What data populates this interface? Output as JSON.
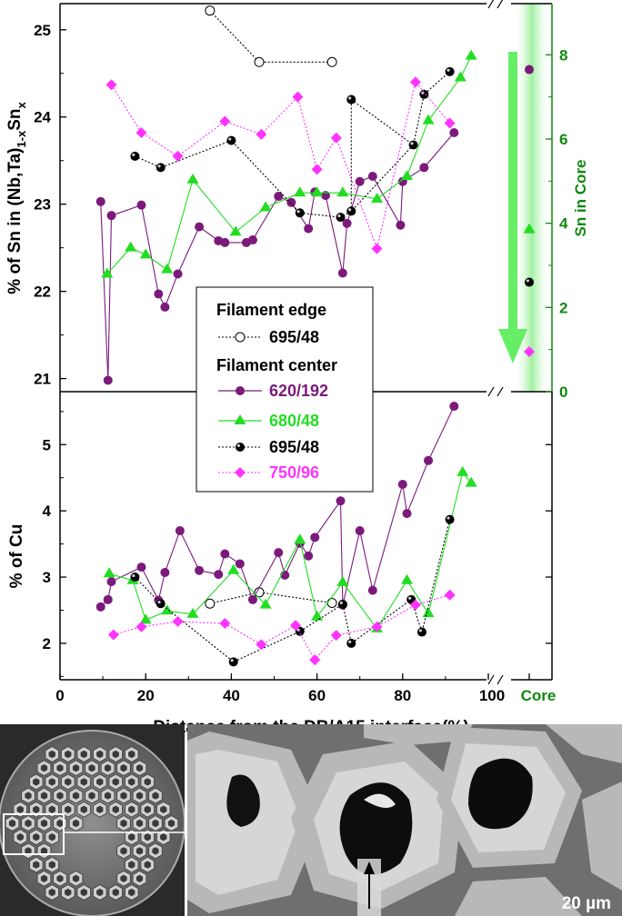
{
  "colors": {
    "purple": "#7b1a7b",
    "green": "#22dd22",
    "black": "#000000",
    "magenta": "#ff33ff",
    "dark_green": "#118811",
    "core_band": "#b6f3b6"
  },
  "chart_data": [
    {
      "type": "line",
      "panel": "top",
      "ylabel_parts": [
        "% of Sn in (Nb,Ta)",
        "1-x",
        "Sn",
        "x"
      ],
      "y2label": "Sn in Core",
      "ylim": [
        20.85,
        25.3
      ],
      "y2lim": [
        0,
        9
      ],
      "yticks": [
        21,
        22,
        23,
        24,
        25
      ],
      "y2ticks": [
        0,
        2,
        4,
        6,
        8
      ],
      "core_label": "Core",
      "legend": {
        "heading_edge": "Filament edge",
        "heading_center": "Filament center"
      },
      "series": [
        {
          "name": "695/48",
          "group": "edge",
          "color": "#000000",
          "marker": "open-circle",
          "dashed": true,
          "x": [
            35,
            46.5,
            63.5
          ],
          "y": [
            25.22,
            24.63,
            24.63
          ]
        },
        {
          "name": "620/192",
          "group": "center",
          "color": "#7b1a7b",
          "marker": "circle",
          "dashed": false,
          "x": [
            9.5,
            11.2,
            12,
            19,
            23,
            24.5,
            27.5,
            32.5,
            37,
            38.5,
            43.5,
            45,
            51,
            54,
            58,
            59.5,
            62,
            66,
            67,
            70,
            73,
            79.5,
            80,
            85,
            92
          ],
          "y": [
            23.03,
            20.98,
            22.87,
            22.99,
            21.97,
            21.82,
            22.2,
            22.74,
            22.58,
            22.56,
            22.56,
            22.59,
            23.09,
            23.02,
            22.72,
            23.14,
            23.1,
            22.21,
            22.78,
            23.26,
            23.32,
            22.76,
            23.26,
            23.42,
            23.82
          ],
          "core_value": 7.65
        },
        {
          "name": "680/48",
          "group": "center",
          "color": "#22dd22",
          "marker": "triangle",
          "dashed": false,
          "x": [
            11,
            16.5,
            20,
            25,
            31,
            41,
            48,
            56,
            60,
            66,
            74,
            81,
            86,
            93.5,
            96
          ],
          "y": [
            22.2,
            22.5,
            22.42,
            22.25,
            23.28,
            22.68,
            22.96,
            23.13,
            23.13,
            23.13,
            23.06,
            23.32,
            23.96,
            24.45,
            24.7
          ],
          "core_value": 3.85
        },
        {
          "name": "695/48",
          "group": "center",
          "color": "#000000",
          "marker": "filled-circle",
          "dashed": true,
          "x": [
            17.5,
            23.5,
            40,
            56,
            65.5,
            68,
            82.5,
            85,
            91
          ],
          "y": [
            23.55,
            23.42,
            23.73,
            22.9,
            22.85,
            22.92,
            23.68,
            24.26,
            24.52
          ],
          "x_extra": [
            68
          ],
          "y_extra": [
            24.2
          ],
          "core_value": 2.6
        },
        {
          "name": "750/96",
          "group": "center",
          "color": "#ff33ff",
          "marker": "diamond",
          "dashed": true,
          "x": [
            12,
            19,
            27.5,
            38.5,
            47,
            55.5,
            60,
            64.5,
            74,
            83,
            91
          ],
          "y": [
            24.37,
            23.82,
            23.55,
            23.95,
            23.8,
            24.23,
            23.4,
            23.76,
            22.49,
            24.4,
            23.93
          ],
          "core_value": 0.95
        }
      ]
    },
    {
      "type": "line",
      "panel": "bottom",
      "ylabel": "% of Cu",
      "xlabel": "Distance from the DB/A15 interface(%)",
      "ylim": [
        1.45,
        5.8
      ],
      "yticks": [
        2,
        3,
        4,
        5
      ],
      "xlim": [
        0,
        112
      ],
      "xticks": [
        0,
        20,
        40,
        60,
        80,
        100
      ],
      "core_label": "Core",
      "series": [
        {
          "name": "695/48",
          "group": "edge",
          "color": "#000000",
          "marker": "open-circle",
          "dashed": true,
          "x": [
            35,
            46.5,
            63.5
          ],
          "y": [
            2.6,
            2.77,
            2.61
          ]
        },
        {
          "name": "620/192",
          "group": "center",
          "color": "#7b1a7b",
          "marker": "circle",
          "dashed": false,
          "x": [
            9.5,
            11.2,
            12,
            19,
            23,
            24.5,
            28,
            32.5,
            37,
            38.5,
            42,
            45,
            51,
            52.5,
            56,
            58,
            59.5,
            65.5,
            66,
            70,
            73,
            80,
            81,
            86,
            92
          ],
          "y": [
            2.55,
            2.66,
            2.93,
            3.15,
            2.65,
            3.07,
            3.7,
            3.1,
            3.04,
            3.35,
            3.2,
            2.66,
            3.37,
            3.03,
            3.51,
            3.32,
            3.6,
            4.15,
            2.58,
            3.7,
            2.8,
            4.4,
            3.96,
            4.76,
            5.58
          ]
        },
        {
          "name": "680/48",
          "group": "center",
          "color": "#22dd22",
          "marker": "triangle",
          "dashed": false,
          "x": [
            11.5,
            17,
            20,
            25,
            31,
            40.5,
            48,
            56,
            60,
            66,
            74,
            81,
            86,
            94,
            96
          ],
          "y": [
            3.05,
            2.95,
            2.35,
            2.49,
            2.44,
            3.1,
            2.58,
            3.56,
            2.4,
            2.92,
            2.22,
            2.95,
            2.45,
            4.58,
            4.42
          ]
        },
        {
          "name": "695/48",
          "group": "center",
          "color": "#000000",
          "marker": "filled-circle",
          "dashed": true,
          "x": [
            17.5,
            23.5,
            40.5,
            56,
            66,
            68,
            82,
            84.5,
            91
          ],
          "y": [
            3.0,
            2.6,
            1.72,
            2.18,
            2.59,
            2.0,
            2.66,
            2.17,
            3.87
          ]
        },
        {
          "name": "750/96",
          "group": "center",
          "color": "#ff33ff",
          "marker": "diamond",
          "dashed": true,
          "x": [
            12.5,
            19,
            27.5,
            38.5,
            47,
            55,
            59.5,
            64.5,
            74,
            83,
            91
          ],
          "y": [
            2.13,
            2.25,
            2.33,
            2.3,
            1.98,
            2.27,
            1.75,
            2.12,
            2.25,
            2.58,
            2.73
          ]
        }
      ]
    }
  ],
  "micrograph": {
    "scale_bar_label": "20 µm"
  }
}
